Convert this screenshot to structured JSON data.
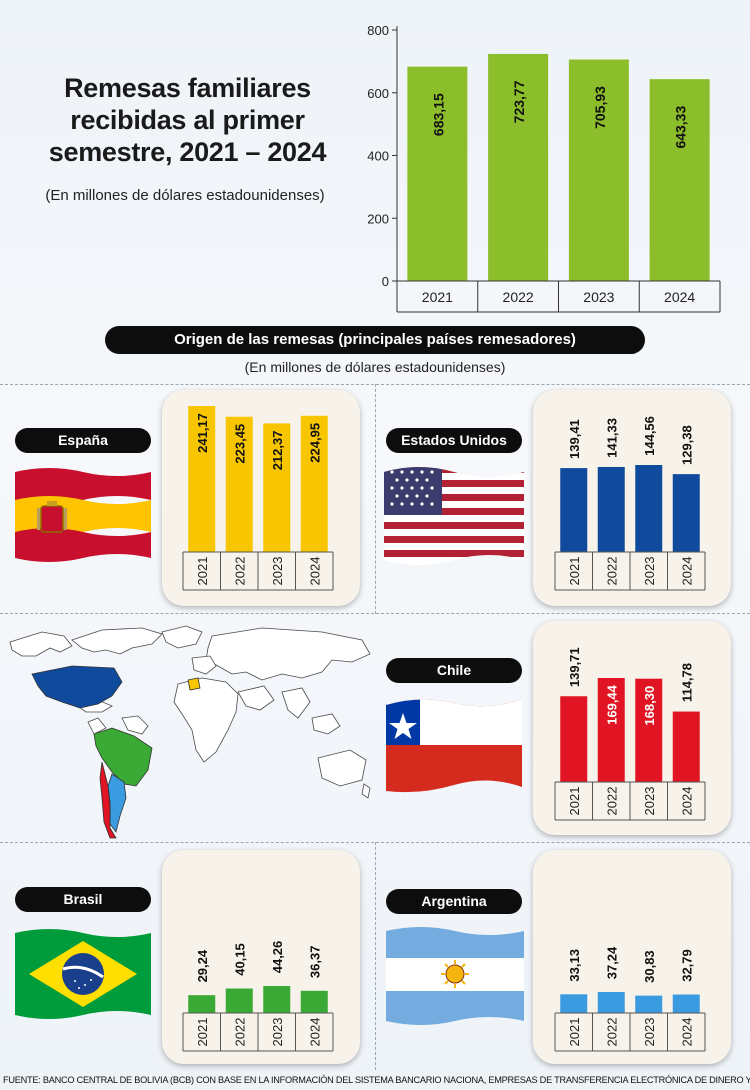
{
  "header": {
    "title": "Remesas familiares recibidas al primer semestre, 2021 – 2024",
    "subtitle": "(En millones de dólares estadounidenses)"
  },
  "origin": {
    "title": "Origen de las remesas (principales países remesadores)",
    "subtitle": "(En millones de dólares estadounidenses)"
  },
  "countries": {
    "spain": "España",
    "usa": "Estados Unidos",
    "chile": "Chile",
    "brazil": "Brasil",
    "argentina": "Argentina"
  },
  "colors": {
    "total": "#8cbd2a",
    "spain": "#f7c600",
    "usa": "#0f4a9c",
    "chile": "#e01422",
    "brazil": "#3aa935",
    "argentina": "#3b9be0"
  },
  "source": "FUENTE: BANCO CENTRAL DE BOLIVIA (BCB) CON BASE EN LA INFORMACIÓN DEL SISTEMA BANCARIO NACIONA, EMPRESAS DE TRANSFERENCIA ELECTRÓNICA DE DINERO Y OTRAS.",
  "chart_data": [
    {
      "type": "bar",
      "title": "Remesas familiares recibidas al primer semestre, 2021 – 2024",
      "categories": [
        "2021",
        "2022",
        "2023",
        "2024"
      ],
      "values": [
        683.15,
        723.77,
        705.93,
        643.33
      ],
      "value_labels": [
        "683,15",
        "723,77",
        "705,93",
        "643,33"
      ],
      "yticks": [
        "0",
        "200",
        "400",
        "600",
        "800"
      ],
      "ylim": [
        0,
        800
      ],
      "grid": false
    },
    {
      "type": "bar",
      "title": "España",
      "categories": [
        "2021",
        "2022",
        "2023",
        "2024"
      ],
      "values": [
        241.17,
        223.45,
        212.37,
        224.95
      ],
      "value_labels": [
        "241,17",
        "223,45",
        "212,37",
        "224,95"
      ]
    },
    {
      "type": "bar",
      "title": "Estados Unidos",
      "categories": [
        "2021",
        "2022",
        "2023",
        "2024"
      ],
      "values": [
        139.41,
        141.33,
        144.56,
        129.38
      ],
      "value_labels": [
        "139,41",
        "141,33",
        "144,56",
        "129,38"
      ]
    },
    {
      "type": "bar",
      "title": "Chile",
      "categories": [
        "2021",
        "2022",
        "2023",
        "2024"
      ],
      "values": [
        139.71,
        169.44,
        168.3,
        114.78
      ],
      "value_labels": [
        "139,71",
        "169,44",
        "168,30",
        "114,78"
      ]
    },
    {
      "type": "bar",
      "title": "Brasil",
      "categories": [
        "2021",
        "2022",
        "2023",
        "2024"
      ],
      "values": [
        29.24,
        40.15,
        44.26,
        36.37
      ],
      "value_labels": [
        "29,24",
        "40,15",
        "44,26",
        "36,37"
      ]
    },
    {
      "type": "bar",
      "title": "Argentina",
      "categories": [
        "2021",
        "2022",
        "2023",
        "2024"
      ],
      "values": [
        33.13,
        37.24,
        30.83,
        32.79
      ],
      "value_labels": [
        "33,13",
        "37,24",
        "30,83",
        "32,79"
      ]
    }
  ]
}
